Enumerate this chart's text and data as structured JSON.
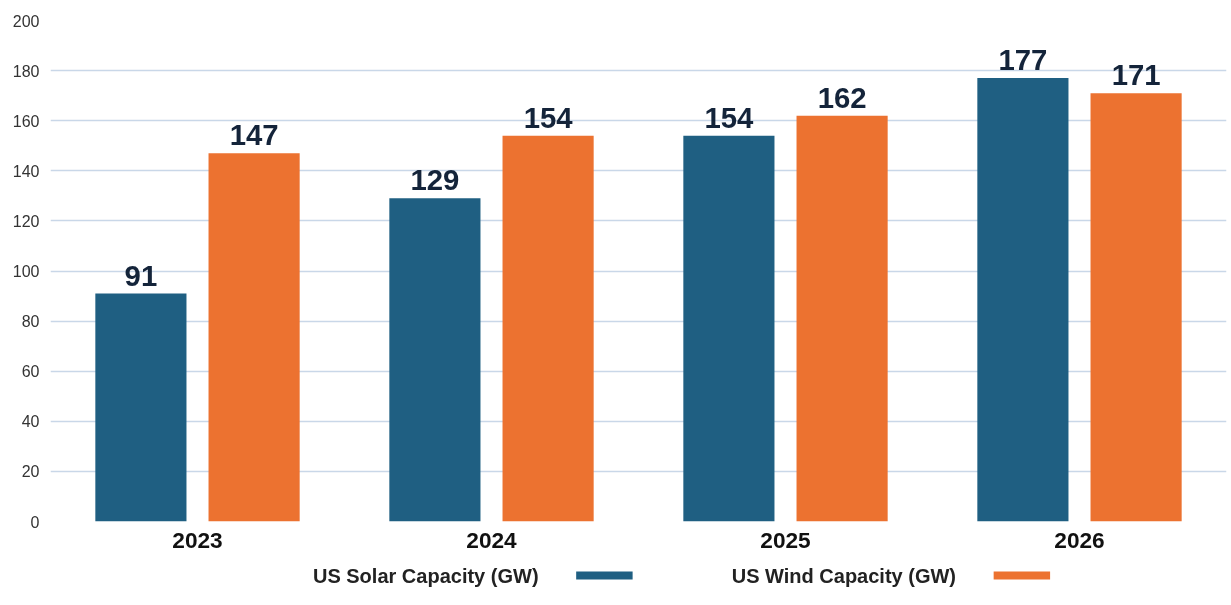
{
  "chart_data": {
    "type": "bar",
    "categories": [
      "2023",
      "2024",
      "2025",
      "2026"
    ],
    "series": [
      {
        "name": "US Solar Capacity (GW)",
        "color": "#1f5f82",
        "values": [
          91,
          129,
          154,
          177
        ]
      },
      {
        "name": "US Wind Capacity (GW)",
        "color": "#ec7230",
        "values": [
          147,
          154,
          162,
          171
        ]
      }
    ],
    "ylim": [
      0,
      200
    ],
    "yticks": [
      0,
      20,
      40,
      60,
      80,
      100,
      120,
      140,
      160,
      180,
      200
    ],
    "grid": "y",
    "legend": "bottom",
    "data_labels": true
  }
}
